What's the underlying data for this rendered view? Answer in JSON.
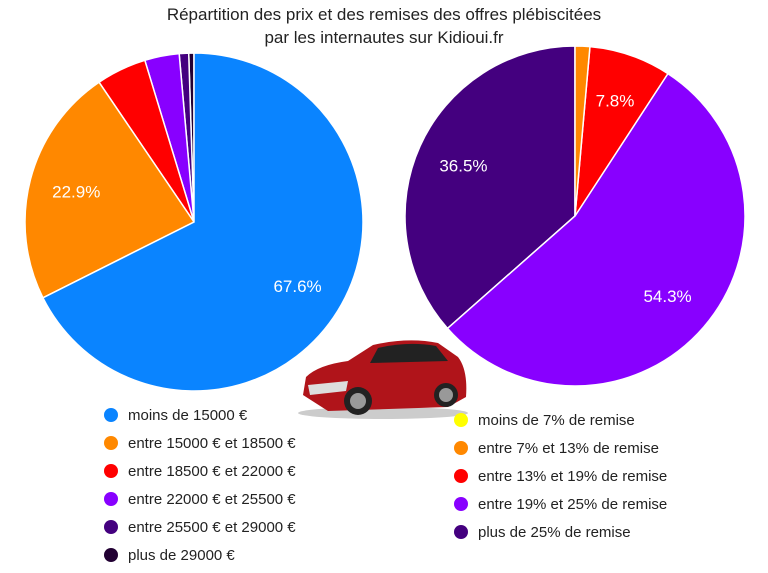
{
  "chart_data": [
    {
      "type": "pie",
      "title": "Répartition des prix et des remises des offres plébiscitées par les internautes sur Kidioui.fr",
      "categories": [
        "moins de 15000 €",
        "entre 15000 € et 18500 €",
        "entre 18500 € et 22000 €",
        "entre 22000 € et 25500 €",
        "entre 25500 € et 29000 €",
        "plus de 29000 €"
      ],
      "values": [
        67.6,
        22.9,
        4.8,
        3.3,
        0.9,
        0.5
      ],
      "labels": [
        "67.6%",
        "22.9%",
        "",
        "",
        "",
        ""
      ],
      "colors": [
        "#0a84ff",
        "#ff8800",
        "#ff0000",
        "#8800ff",
        "#44007f",
        "#220033"
      ]
    },
    {
      "type": "pie",
      "categories": [
        "moins de 7% de remise",
        "entre 7% et 13% de remise",
        "entre 13% et 19% de remise",
        "entre 19% et 25% de remise",
        "plus de 25% de remise"
      ],
      "values": [
        0,
        1.4,
        7.8,
        54.3,
        36.5
      ],
      "labels": [
        "",
        "",
        "7.8%",
        "54.3%",
        "36.5%"
      ],
      "colors": [
        "#ffff00",
        "#ff8800",
        "#ff0000",
        "#8800ff",
        "#44007f"
      ]
    }
  ],
  "title_line1": "Répartition des prix et des remises des offres plébiscitées",
  "title_line2": "par les internautes sur Kidioui.fr"
}
